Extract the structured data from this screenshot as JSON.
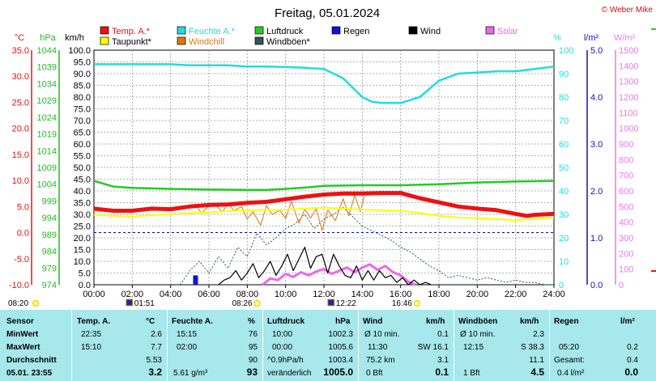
{
  "chart_data": {
    "type": "line",
    "title": "Freitag, 05.01.2024",
    "credit": "© Weber Mike",
    "x_ticks": [
      "00:00",
      "02:00",
      "04:00",
      "06:00",
      "08:00",
      "10:00",
      "12:00",
      "14:00",
      "16:00",
      "18:00",
      "20:00",
      "22:00",
      "24:00"
    ],
    "xlim_hours": [
      0,
      24
    ],
    "grid": true,
    "legend": [
      {
        "label": "Temp. A.*",
        "color": "#ee1111"
      },
      {
        "label": "Feuchte A.*",
        "color": "#22dddd"
      },
      {
        "label": "Luftdruck",
        "color": "#22cc22"
      },
      {
        "label": "Regen",
        "color": "#1111dd"
      },
      {
        "label": "Wind",
        "color": "#000000"
      },
      {
        "label": "Solar",
        "color": "#ee66ee"
      },
      {
        "label": "Taupunkt*",
        "color": "#ffff00"
      },
      {
        "label": "Windchill",
        "color": "#dd7711"
      },
      {
        "label": "Windböen*",
        "color": "#335555"
      }
    ],
    "axes": {
      "temp": {
        "unit": "°C",
        "color": "#ee1111",
        "ticks": [
          "35.0",
          "30.0",
          "25.0",
          "20.0",
          "15.0",
          "10.0",
          "5.0",
          "0.0",
          "-5.0",
          "-10.0"
        ],
        "range": [
          -10,
          35
        ]
      },
      "pressure": {
        "unit": "hPa",
        "color": "#22bb22",
        "ticks": [
          "1044",
          "1039",
          "1034",
          "1029",
          "1024",
          "1019",
          "1014",
          "1009",
          "1004",
          "999",
          "994",
          "989",
          "984",
          "979",
          "974"
        ],
        "range": [
          974,
          1044
        ]
      },
      "wind": {
        "unit": "km/h",
        "color": "#000000",
        "ticks": [
          "100.0",
          "95.0",
          "90.0",
          "85.0",
          "80.0",
          "75.0",
          "70.0",
          "65.0",
          "60.0",
          "55.0",
          "50.0",
          "45.0",
          "40.0",
          "35.0",
          "30.0",
          "25.0",
          "20.0",
          "15.0",
          "10.0",
          "5.0",
          "0.0"
        ],
        "range": [
          0,
          100
        ]
      },
      "humidity": {
        "unit": "%",
        "color": "#22dddd",
        "ticks": [
          "100",
          "90",
          "80",
          "70",
          "60",
          "50",
          "40",
          "30",
          "20",
          "10",
          "0"
        ],
        "range": [
          0,
          100
        ]
      },
      "rain": {
        "unit": "l/m²",
        "color": "#1111bb",
        "ticks": [
          "5.0",
          "4.0",
          "3.0",
          "2.0",
          "1.0",
          "0.0"
        ],
        "range": [
          0,
          5
        ]
      },
      "solar": {
        "unit": "W/m²",
        "color": "#ee77ee",
        "ticks": [
          "1500",
          "1400",
          "1300",
          "1200",
          "1100",
          "1000",
          "900",
          "800",
          "700",
          "600",
          "500",
          "400",
          "300",
          "200",
          "100",
          "0"
        ],
        "range": [
          0,
          1500
        ]
      }
    },
    "series": [
      {
        "name": "Temp. A.*",
        "axis": "temp",
        "color": "#ee1111",
        "x": [
          0,
          1,
          2,
          3,
          4,
          5,
          6,
          7,
          8,
          9,
          10,
          11,
          12,
          13,
          14,
          15,
          16,
          17,
          18,
          19,
          20,
          21,
          22,
          22.6,
          23,
          24
        ],
        "y": [
          4.6,
          4.2,
          4.2,
          4.6,
          4.5,
          5.0,
          5.3,
          5.4,
          5.7,
          5.9,
          6.4,
          6.9,
          7.3,
          7.5,
          7.5,
          7.6,
          7.6,
          6.6,
          5.8,
          5.0,
          4.6,
          4.3,
          3.6,
          3.2,
          3.4,
          3.6
        ]
      },
      {
        "name": "Taupunkt*",
        "axis": "temp",
        "color": "#ffff00",
        "x": [
          0,
          2,
          4,
          6,
          8,
          10,
          12,
          14,
          15,
          16,
          17,
          18,
          19,
          20,
          21,
          22,
          23,
          24
        ],
        "y": [
          3.4,
          3.1,
          3.6,
          3.9,
          4.3,
          4.4,
          4.8,
          4.4,
          4.3,
          4.2,
          3.8,
          3.2,
          2.9,
          2.8,
          2.6,
          2.4,
          2.6,
          2.9
        ]
      },
      {
        "name": "Feuchte A.*",
        "axis": "humidity",
        "color": "#22dddd",
        "x": [
          0,
          1,
          2,
          3,
          4,
          5,
          6,
          7,
          8,
          9,
          10,
          11,
          12,
          13,
          13.5,
          14,
          14.5,
          15,
          16,
          17,
          18,
          19,
          20,
          21,
          22,
          23,
          24
        ],
        "y": [
          94,
          94,
          94,
          94,
          94,
          93.5,
          93.5,
          93.5,
          93,
          93,
          92.8,
          92.5,
          92,
          88,
          84,
          80,
          78,
          77.5,
          77.5,
          80,
          87,
          90,
          90.5,
          91,
          91,
          92,
          93
        ]
      },
      {
        "name": "Luftdruck",
        "axis": "pressure",
        "color": "#22cc22",
        "x": [
          0,
          1,
          2,
          4,
          6,
          8,
          9,
          10,
          11,
          12,
          14,
          16,
          18,
          20,
          22,
          24
        ],
        "y": [
          1005.0,
          1003.3,
          1002.9,
          1002.6,
          1002.4,
          1002.3,
          1002.3,
          1002.6,
          1003.0,
          1003.5,
          1003.7,
          1003.7,
          1004.0,
          1004.5,
          1004.8,
          1005.0
        ]
      },
      {
        "name": "Windchill",
        "axis": "temp",
        "color": "#dd7711",
        "x": [
          5.3,
          5.6,
          6.0,
          6.3,
          6.7,
          7.0,
          7.3,
          7.7,
          8.0,
          8.3,
          8.7,
          9.0,
          9.3,
          9.7,
          10.0,
          10.3,
          10.7,
          11.0,
          11.3,
          11.6,
          11.9,
          12.2,
          12.6,
          13.0,
          13.3,
          13.6,
          13.9,
          14.1
        ],
        "y": [
          5.3,
          3.8,
          5.0,
          5.4,
          4.0,
          5.6,
          4.2,
          5.0,
          2.6,
          4.0,
          1.4,
          5.2,
          3.5,
          4.3,
          2.7,
          6.0,
          1.8,
          4.5,
          2.8,
          4.6,
          0.4,
          4.3,
          2.3,
          6.5,
          3.2,
          7.2,
          4.0,
          7.0
        ]
      },
      {
        "name": "Wind",
        "axis": "wind",
        "color": "#000000",
        "x": [
          6.5,
          6.8,
          7.1,
          7.4,
          7.7,
          8.0,
          8.3,
          8.6,
          8.9,
          9.2,
          9.5,
          9.8,
          10.1,
          10.4,
          10.7,
          11.0,
          11.3,
          11.6,
          11.9,
          12.2,
          12.5,
          12.8,
          13.1,
          13.4,
          13.7,
          14.0,
          14.3,
          14.6,
          14.9,
          15.2,
          15.5,
          15.8,
          16.1,
          16.4,
          16.7,
          17.0,
          17.3,
          17.6
        ],
        "y": [
          0,
          2,
          3,
          6,
          2,
          5,
          9,
          3,
          6,
          10,
          4,
          8,
          13,
          6,
          11,
          16,
          7,
          12,
          13,
          5,
          13,
          8,
          4,
          3,
          8,
          2,
          6,
          2,
          6,
          3,
          4,
          1,
          3,
          0,
          2,
          0,
          1,
          0
        ]
      },
      {
        "name": "Windböen*",
        "axis": "wind",
        "color": "#335555",
        "x": [
          4.5,
          5.0,
          5.5,
          6.0,
          6.5,
          7.0,
          7.5,
          8.0,
          8.5,
          9.0,
          9.5,
          10.0,
          10.5,
          11.0,
          11.5,
          12.0,
          12.5,
          13.0,
          13.5,
          14.0,
          14.5,
          15.0,
          15.5,
          16.0,
          16.5,
          17.0,
          17.5,
          18.0,
          18.5,
          19.0,
          19.5,
          20.0,
          20.5,
          21.0,
          21.5,
          22.0,
          22.5,
          23.0,
          23.5,
          24.0
        ],
        "y": [
          0,
          6,
          10,
          5,
          12,
          7,
          16,
          12,
          22,
          17,
          20,
          24,
          26,
          30,
          24,
          28,
          30,
          33,
          29,
          25,
          23,
          21,
          19,
          16,
          14,
          11,
          8,
          6,
          3,
          4,
          3,
          2,
          3,
          2,
          1,
          2,
          1,
          1,
          0,
          0
        ]
      },
      {
        "name": "Solar",
        "axis": "solar",
        "color": "#ee66ee",
        "x": [
          8.8,
          9.2,
          9.6,
          10.0,
          10.4,
          10.8,
          11.2,
          11.6,
          12.0,
          12.4,
          12.8,
          13.2,
          13.6,
          14.0,
          14.4,
          14.8,
          15.2,
          15.6,
          16.0,
          16.4,
          16.8
        ],
        "y": [
          0,
          40,
          30,
          70,
          50,
          80,
          60,
          85,
          100,
          70,
          90,
          110,
          80,
          110,
          130,
          95,
          120,
          80,
          60,
          20,
          0
        ]
      }
    ],
    "rain_bars": [
      {
        "x_hours": 5.3,
        "value": 0.2
      }
    ],
    "reference_lines": [
      {
        "axis": "temp",
        "value": 0.0,
        "color": "#0000cc",
        "style": "dashed"
      }
    ],
    "time_markers": [
      {
        "label": "08:20",
        "x_hours": 0,
        "kind": "sun"
      },
      {
        "label": "01:51",
        "x_hours": 1.85,
        "kind": "moon"
      },
      {
        "label": "08:26",
        "x_hours": 8.43,
        "kind": "sun"
      },
      {
        "label": "12:22",
        "x_hours": 12.37,
        "kind": "moon"
      },
      {
        "label": "16:46",
        "x_hours": 16.77,
        "kind": "sun"
      }
    ]
  },
  "table": {
    "headers": {
      "sensor": "Sensor",
      "temp": "Temp. A.",
      "temp_unit": "°C",
      "hum": "Feuchte A.",
      "hum_unit": "%",
      "press": "Luftdruck",
      "press_unit": "hPa",
      "wind": "Wind",
      "wind_unit": "km/h",
      "gust": "Windböen",
      "gust_unit": "km/h",
      "rain": "Regen",
      "rain_unit": "l/m²"
    },
    "rows": {
      "min_label": "MinWert",
      "max_label": "MaxWert",
      "avg_label": "Durchschnitt",
      "cur_label": "05.01. 23:55"
    },
    "temp": {
      "min_time": "22:35",
      "min": "2.6",
      "max_time": "15:10",
      "max": "7.7",
      "avg": "5.53",
      "cur": "3.2"
    },
    "hum": {
      "min_time": "15:15",
      "min": "76",
      "max_time": "02:00",
      "max": "95",
      "avg": "90",
      "cur_abs": "5.61 g/m³",
      "cur": "93"
    },
    "press": {
      "min_time": "10:00",
      "min": "1002.3",
      "max_time": "00:00",
      "max": "1005.6",
      "trend": "^0.9hPa/h",
      "avg": "1003.4",
      "cur_trend": "veränderlich",
      "cur": "1005.0"
    },
    "wind": {
      "min_label": "Ø 10 min.",
      "min": "0.1",
      "max_time": "11:30",
      "max_dir": "SW 16.1",
      "dist": "75.2 km",
      "avg": "3.1",
      "bft": "0 Bft",
      "cur": "0.1"
    },
    "gust": {
      "min_label": "Ø 10 min.",
      "min": "2.3",
      "max_time": "12:15",
      "max_dir": "S 38.3",
      "avg": "11.1",
      "bft": "1 Bft",
      "cur": "4.5"
    },
    "rain": {
      "max_time": "05:20",
      "max": "0.2",
      "total_label": "Gesamt:",
      "total": "0.4",
      "cur_rate": "0.4 l/m²",
      "cur": "0.0"
    }
  }
}
